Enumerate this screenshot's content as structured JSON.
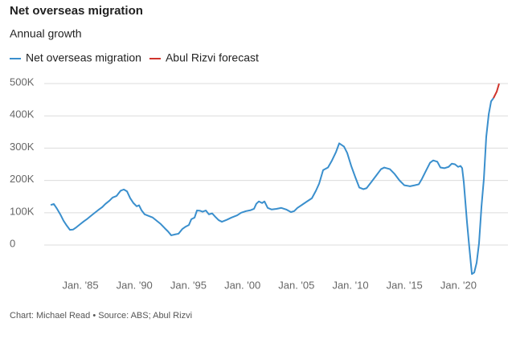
{
  "chart_data": {
    "type": "line",
    "title": "Net overseas migration",
    "subtitle": "Annual growth",
    "source": "Chart: Michael Read • Source: ABS; Abul Rizvi",
    "xlim": [
      1981.65,
      2024.58
    ],
    "xticks": [
      {
        "value": 1985,
        "label": "Jan. '85"
      },
      {
        "value": 1990,
        "label": "Jan. '90"
      },
      {
        "value": 1995,
        "label": "Jan. '95"
      },
      {
        "value": 2000,
        "label": "Jan. '00"
      },
      {
        "value": 2005,
        "label": "Jan. '05"
      },
      {
        "value": 2010,
        "label": "Jan. '10"
      },
      {
        "value": 2015,
        "label": "Jan. '15"
      },
      {
        "value": 2020,
        "label": "Jan. '20"
      }
    ],
    "ylim": [
      -100000,
      525000
    ],
    "yticks": [
      0,
      {
        "value": 100000,
        "label": "100K"
      },
      {
        "value": 200000,
        "label": "200K"
      },
      {
        "value": 300000,
        "label": "300K"
      },
      {
        "value": 400000,
        "label": "400K"
      },
      {
        "value": 500000,
        "label": "500K"
      }
    ],
    "grid": true,
    "series": [
      {
        "name": "Net overseas migration",
        "color": "#3a8fcd",
        "x": [
          1982.25,
          1982.54,
          1982.84,
          1983.14,
          1983.44,
          1983.74,
          1984.03,
          1984.33,
          1984.63,
          1985.0,
          1985.3,
          1985.6,
          1985.89,
          1986.26,
          1986.64,
          1987.01,
          1987.31,
          1987.68,
          1987.98,
          1988.35,
          1988.72,
          1989.02,
          1989.32,
          1989.61,
          1989.91,
          1990.21,
          1990.43,
          1990.65,
          1990.95,
          1991.32,
          1991.7,
          1992.07,
          1992.44,
          1992.81,
          1993.11,
          1993.41,
          1993.78,
          1994.08,
          1994.45,
          1994.75,
          1995.04,
          1995.27,
          1995.57,
          1995.79,
          1996.09,
          1996.31,
          1996.61,
          1996.9,
          1997.2,
          1997.5,
          1997.8,
          1998.1,
          1998.54,
          1998.99,
          1999.51,
          1999.88,
          2000.33,
          2000.77,
          2001.07,
          2001.29,
          2001.52,
          2001.82,
          2002.04,
          2002.34,
          2002.71,
          2003.15,
          2003.6,
          2004.05,
          2004.49,
          2004.79,
          2005.09,
          2005.54,
          2005.98,
          2006.43,
          2006.8,
          2007.1,
          2007.47,
          2007.92,
          2008.29,
          2008.66,
          2008.96,
          2009.4,
          2009.7,
          2010.07,
          2010.45,
          2010.82,
          2011.19,
          2011.49,
          2011.93,
          2012.38,
          2012.83,
          2013.13,
          2013.65,
          2014.09,
          2014.54,
          2014.99,
          2015.51,
          2015.95,
          2016.32,
          2016.62,
          2016.99,
          2017.37,
          2017.66,
          2018.04,
          2018.33,
          2018.71,
          2019.08,
          2019.38,
          2019.67,
          2019.97,
          2020.19,
          2020.34,
          2020.49,
          2020.79,
          2021.01,
          2021.24,
          2021.46,
          2021.68,
          2021.9,
          2022.13,
          2022.35,
          2022.57,
          2022.8,
          2023.02,
          2023.24
        ],
        "values": [
          124000,
          127000,
          112000,
          95000,
          75000,
          60000,
          47000,
          48000,
          55000,
          65000,
          73000,
          80000,
          88000,
          98000,
          108000,
          117000,
          127000,
          137000,
          147000,
          152000,
          168000,
          172000,
          166000,
          145000,
          130000,
          120000,
          123000,
          108000,
          95000,
          90000,
          85000,
          75000,
          65000,
          52000,
          42000,
          30000,
          33000,
          35000,
          50000,
          57000,
          62000,
          80000,
          85000,
          107000,
          106000,
          103000,
          107000,
          95000,
          98000,
          87000,
          77000,
          72000,
          78000,
          85000,
          92000,
          100000,
          105000,
          108000,
          112000,
          128000,
          135000,
          130000,
          135000,
          115000,
          110000,
          112000,
          115000,
          110000,
          102000,
          105000,
          115000,
          125000,
          135000,
          145000,
          168000,
          190000,
          232000,
          240000,
          262000,
          288000,
          315000,
          305000,
          285000,
          245000,
          210000,
          178000,
          173000,
          176000,
          195000,
          215000,
          235000,
          240000,
          235000,
          220000,
          200000,
          185000,
          182000,
          185000,
          188000,
          205000,
          230000,
          255000,
          262000,
          258000,
          240000,
          238000,
          242000,
          252000,
          250000,
          242000,
          245000,
          238000,
          195000,
          70000,
          -10000,
          -90000,
          -85000,
          -55000,
          5000,
          120000,
          205000,
          335000,
          405000,
          445000,
          455000
        ]
      },
      {
        "name": "Abul Rizvi forecast",
        "color": "#d0342c",
        "x": [
          2023.24,
          2023.54,
          2023.76
        ],
        "values": [
          455000,
          475000,
          500000
        ]
      }
    ]
  }
}
